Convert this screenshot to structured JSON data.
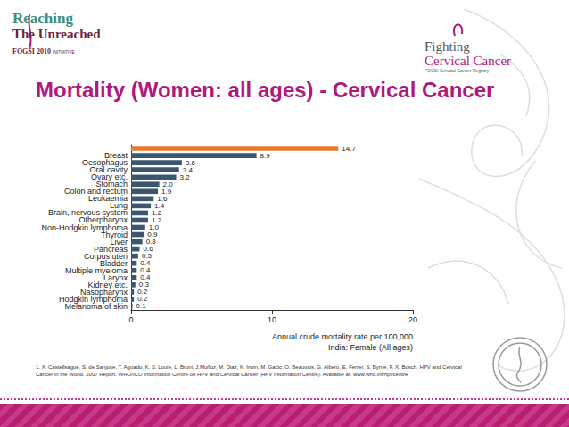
{
  "slide": {
    "logo_left": [
      "Reaching",
      "The Unreached",
      "FOGSI 2010",
      "INITIATIVE"
    ],
    "logo_right": [
      "Fighting",
      "Cervical Cancer",
      "FOGSI Cervical Cancer Registry"
    ],
    "footnote": "1. X. Castellsagué, S. de Sanjose, T. Aguado, K. S. Louie, L. Bruni, J.Muñoz, M. Diaz, K. Irwin, M. Gacic, O. Beauvais, G. Albero, E. Ferrer, S. Byrne, F. X. Bosch. HPV and Cervical Cancer in the World. 2007 Report. WHO/ICO Information Centre on HPV and Cervical Cancer (HPV Information Centre). Available at: www.who.int/hpvcentre"
  },
  "chart_data": {
    "type": "bar",
    "title": "Mortality (Women: all ages) - Cervical Cancer",
    "orientation": "horizontal",
    "categories": [
      null,
      "Breast",
      "Oesophagus",
      "Oral cavity",
      "Ovary etc.",
      "Stomach",
      "Colon and rectum",
      "Leukaemia",
      "Lung",
      "Brain, nervous system",
      "Otherpharynx",
      "Non-Hodgkin lymphoma",
      "Thyroid",
      "Liver",
      "Pancreas",
      "Corpus uteri",
      "Bladder",
      "Multiple myeloma",
      "Larynx",
      "Kidney etc.",
      "Nasopharynx",
      "Hodgkin lymphoma",
      "Melanoma of skin"
    ],
    "values": [
      14.7,
      8.9,
      3.6,
      3.4,
      3.2,
      2.0,
      1.9,
      1.6,
      1.4,
      1.2,
      1.2,
      1.0,
      0.9,
      0.8,
      0.6,
      0.5,
      0.4,
      0.4,
      0.4,
      0.3,
      0.2,
      0.2,
      0.1
    ],
    "value_labels": [
      "14.7",
      "8.9",
      "3.6",
      "3.4",
      "3.2",
      "2.0",
      "1.9",
      "1.6",
      "1.4",
      "1.2",
      "1.2",
      "1.0",
      "0.9",
      "0.8",
      "0.6",
      "0.5",
      "0.4",
      "0.4",
      "0.4",
      "0.3",
      "0.2",
      "0.2",
      "0.1"
    ],
    "colors": [
      "#e8782b",
      "#3b5670",
      "#3b5670",
      "#3b5670",
      "#3b5670",
      "#3b5670",
      "#3b5670",
      "#3b5670",
      "#3b5670",
      "#3b5670",
      "#3b5670",
      "#3b5670",
      "#3b5670",
      "#3b5670",
      "#3b5670",
      "#3b5670",
      "#3b5670",
      "#3b5670",
      "#3b5670",
      "#3b5670",
      "#3b5670",
      "#3b5670",
      "#3b5670"
    ],
    "data_labels": true,
    "xlabel": "Annual crude mortality rate per 100,000",
    "annotations": [
      "India: Female (All ages)"
    ],
    "xlim": [
      0,
      20
    ],
    "xticks": [
      0,
      10,
      20
    ],
    "grid": false
  }
}
